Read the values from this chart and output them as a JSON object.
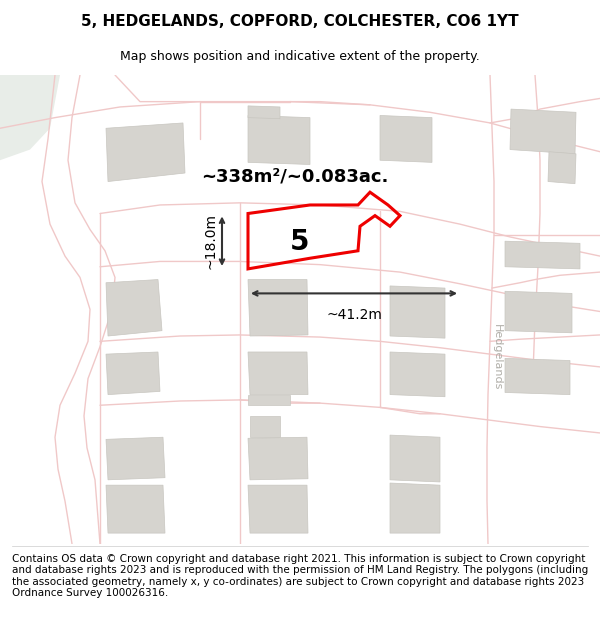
{
  "title": "5, HEDGELANDS, COPFORD, COLCHESTER, CO6 1YT",
  "subtitle": "Map shows position and indicative extent of the property.",
  "footer": "Contains OS data © Crown copyright and database right 2021. This information is subject to Crown copyright and database rights 2023 and is reproduced with the permission of HM Land Registry. The polygons (including the associated geometry, namely x, y co-ordinates) are subject to Crown copyright and database rights 2023 Ordnance Survey 100026316.",
  "area_label": "~338m²/~0.083ac.",
  "width_label": "~41.2m",
  "height_label": "~18.0m",
  "plot_number": "5",
  "bg_map": "#f2f0ed",
  "bg_green": "#e8ede8",
  "building_color": "#d6d4cf",
  "building_edge": "#c8c6c0",
  "road_color": "#f0c8c8",
  "road_lw": 1.0,
  "plot_color": "#ee0000",
  "plot_lw": 2.2,
  "title_fontsize": 11,
  "subtitle_fontsize": 9,
  "footer_fontsize": 7.5,
  "street_label": "Hedgelands",
  "street_label_color": "#b0aea8",
  "dim_color": "#333333",
  "annot_fontsize": 13
}
